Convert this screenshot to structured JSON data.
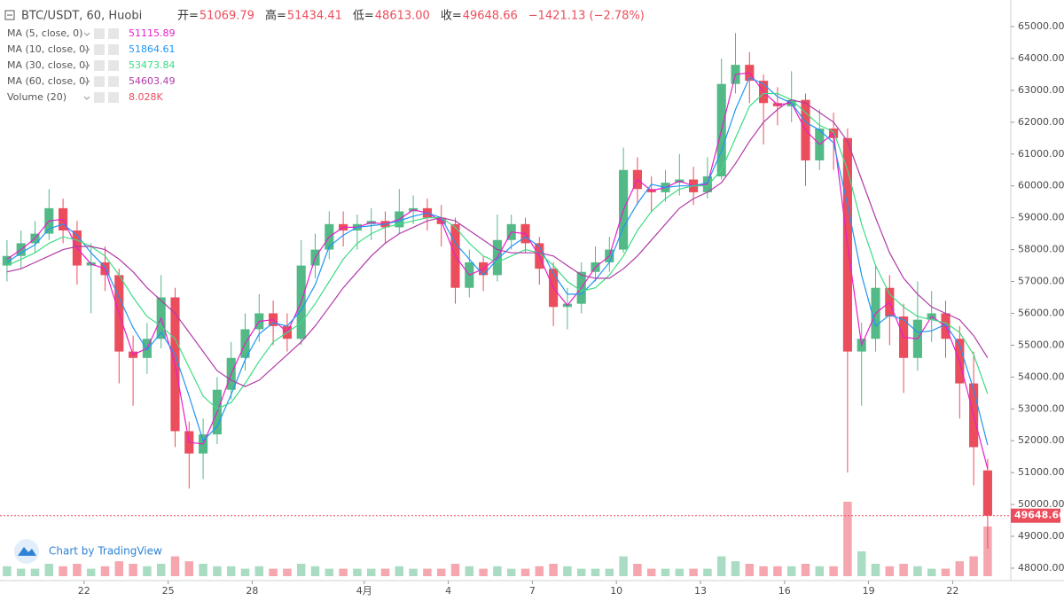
{
  "chart_data": {
    "type": "candlestick",
    "title": "BTC/USDT, 60, Huobi",
    "ohlc_legend": [
      {
        "label": "开=",
        "value": "51069.79"
      },
      {
        "label": "高=",
        "value": "51434.41"
      },
      {
        "label": "低=",
        "value": "48613.00"
      },
      {
        "label": "收=",
        "value": "49648.66"
      }
    ],
    "change": "−1421.13 (−2.78%)",
    "volume_legend": {
      "name": "Volume (20)",
      "value": "8.028K"
    },
    "watermark": "Chart by TradingView",
    "up_color": "#53b987",
    "down_color": "#eb4d5c",
    "volume_up_color": "#a9dcc3",
    "volume_down_color": "#f5a6ae",
    "categories": [
      null,
      null,
      null,
      null,
      null,
      null,
      "22",
      null,
      null,
      null,
      null,
      null,
      "25",
      null,
      null,
      null,
      null,
      null,
      "28",
      null,
      null,
      null,
      null,
      null,
      null,
      null,
      "4月",
      null,
      null,
      null,
      null,
      null,
      "4",
      null,
      null,
      null,
      null,
      null,
      "7",
      null,
      null,
      null,
      null,
      null,
      "10",
      null,
      null,
      null,
      null,
      null,
      "13",
      null,
      null,
      null,
      null,
      null,
      "16",
      null,
      null,
      null,
      null,
      null,
      "19",
      null,
      null,
      null,
      null,
      null,
      "22",
      null,
      null
    ],
    "open": [
      57500,
      57800,
      58200,
      58500,
      59300,
      58600,
      57500,
      57600,
      57200,
      54800,
      54600,
      55200,
      56500,
      52300,
      51600,
      52200,
      53600,
      54600,
      55500,
      56000,
      55600,
      55200,
      57500,
      58000,
      58800,
      58600,
      58800,
      58900,
      58700,
      59200,
      59300,
      59000,
      58800,
      56800,
      57600,
      57200,
      58300,
      58800,
      58200,
      57400,
      56200,
      56300,
      57300,
      57600,
      58000,
      60500,
      59900,
      59800,
      60100,
      60200,
      59800,
      60300,
      63200,
      63800,
      63300,
      62600,
      62500,
      62700,
      60800,
      61800,
      61500,
      54800,
      55200,
      56800,
      55900,
      54600,
      55800,
      56000,
      55200,
      53800,
      51069.79
    ],
    "high": [
      58300,
      58600,
      58900,
      59900,
      59600,
      58900,
      58200,
      58100,
      57400,
      55300,
      55700,
      57200,
      56800,
      52600,
      52700,
      54000,
      55100,
      56000,
      56600,
      56400,
      56000,
      58300,
      58500,
      59200,
      59200,
      59100,
      59300,
      59200,
      59900,
      59700,
      59600,
      59400,
      59000,
      58000,
      57800,
      59100,
      59100,
      59000,
      58400,
      57600,
      56800,
      57600,
      58100,
      58400,
      61200,
      60900,
      60300,
      60500,
      61000,
      60600,
      60900,
      64000,
      64800,
      64200,
      63500,
      63100,
      63600,
      62900,
      62400,
      62300,
      61800,
      55700,
      57500,
      57200,
      56300,
      57000,
      56700,
      56400,
      55600,
      54800,
      51434.41
    ],
    "low": [
      57000,
      57400,
      57900,
      58300,
      58200,
      56900,
      56000,
      56700,
      53800,
      53100,
      54100,
      54900,
      51800,
      50500,
      50800,
      51900,
      53300,
      54200,
      55100,
      55000,
      54800,
      55000,
      57100,
      57700,
      58100,
      58000,
      58300,
      58200,
      58500,
      58800,
      58600,
      58100,
      56300,
      56500,
      56700,
      57000,
      58000,
      57900,
      56900,
      55600,
      55500,
      56000,
      57000,
      57300,
      57900,
      59400,
      59200,
      59500,
      59700,
      59400,
      59600,
      60200,
      62900,
      62600,
      61300,
      61900,
      62000,
      60000,
      60500,
      60500,
      51000,
      53100,
      54800,
      55000,
      53500,
      54200,
      55100,
      54600,
      52700,
      50600,
      48613
    ],
    "close": [
      57800,
      58200,
      58500,
      59300,
      58600,
      57500,
      57600,
      57200,
      54800,
      54600,
      55200,
      56500,
      52300,
      51600,
      52200,
      53600,
      54600,
      55500,
      56000,
      55600,
      55200,
      57500,
      58000,
      58800,
      58600,
      58800,
      58900,
      58700,
      59200,
      59300,
      59000,
      58800,
      56800,
      57600,
      57200,
      58300,
      58800,
      58200,
      57400,
      56200,
      56300,
      57300,
      57600,
      58000,
      60500,
      59900,
      59800,
      60100,
      60200,
      59800,
      60300,
      63200,
      63800,
      63300,
      62600,
      62500,
      62700,
      60800,
      61800,
      61500,
      54800,
      55200,
      56800,
      55900,
      54600,
      55800,
      56000,
      55200,
      53800,
      51800,
      49648.66
    ],
    "volume": [
      4,
      3,
      3,
      5,
      4,
      5,
      3,
      4,
      6,
      5,
      4,
      5,
      8,
      6,
      5,
      4,
      4,
      3,
      4,
      3,
      3,
      5,
      4,
      3,
      3,
      3,
      3,
      3,
      4,
      3,
      3,
      3,
      5,
      4,
      3,
      4,
      3,
      3,
      4,
      5,
      4,
      3,
      3,
      3,
      8,
      5,
      3,
      3,
      3,
      3,
      3,
      8,
      6,
      5,
      4,
      4,
      4,
      5,
      4,
      4,
      30,
      10,
      5,
      4,
      5,
      4,
      3,
      3,
      6,
      8,
      20
    ],
    "series": [
      {
        "name": "MA (5, close, 0)",
        "color": "#e91ec8",
        "values": [
          57700,
          58000,
          58350,
          58900,
          58950,
          58050,
          57550,
          57400,
          56000,
          54700,
          54900,
          55850,
          54400,
          51950,
          51900,
          52900,
          54100,
          55050,
          55750,
          55800,
          55400,
          56350,
          57750,
          58400,
          58700,
          58700,
          58850,
          58800,
          58950,
          59250,
          59150,
          58900,
          57800,
          57200,
          57400,
          57750,
          58550,
          58500,
          57800,
          56800,
          56250,
          56800,
          57450,
          57800,
          59250,
          60200,
          59850,
          59950,
          60150,
          60000,
          60050,
          61750,
          63500,
          63550,
          62950,
          62550,
          62600,
          61750,
          61300,
          61650,
          58150,
          55000,
          56000,
          56350,
          55250,
          55200,
          55900,
          55600,
          54500,
          52800,
          51115.89
        ]
      },
      {
        "name": "MA (10, close, 0)",
        "color": "#2196f3",
        "values": [
          57600,
          57900,
          58150,
          58650,
          58800,
          58450,
          57900,
          57450,
          56500,
          55550,
          54850,
          55400,
          54700,
          53400,
          52000,
          52450,
          53450,
          54550,
          55350,
          55700,
          55600,
          56100,
          56900,
          58100,
          58450,
          58700,
          58750,
          58800,
          58900,
          59050,
          59150,
          59000,
          58200,
          57700,
          57200,
          57700,
          58100,
          58400,
          58100,
          57250,
          56600,
          56600,
          57050,
          57600,
          58700,
          59450,
          60050,
          59950,
          60000,
          60000,
          60100,
          61100,
          62400,
          63400,
          63200,
          62800,
          62600,
          62000,
          61750,
          61350,
          59400,
          57200,
          55600,
          55950,
          55800,
          55400,
          55450,
          55650,
          55000,
          53600,
          51864.61
        ]
      },
      {
        "name": "MA (30, close, 0)",
        "color": "#3ddc84",
        "values": [
          57500,
          57700,
          57900,
          58200,
          58400,
          58300,
          58100,
          57800,
          57200,
          56500,
          55900,
          55600,
          55200,
          54300,
          53400,
          53000,
          53200,
          53800,
          54500,
          55100,
          55400,
          55700,
          56300,
          57000,
          57700,
          58200,
          58500,
          58700,
          58800,
          58900,
          59000,
          59000,
          58700,
          58200,
          57800,
          57600,
          57800,
          58000,
          57900,
          57500,
          57000,
          56700,
          56800,
          57200,
          57800,
          58600,
          59200,
          59600,
          59900,
          60000,
          60000,
          60500,
          61500,
          62500,
          62900,
          62900,
          62700,
          62300,
          61900,
          61700,
          60500,
          58800,
          57500,
          56600,
          56200,
          55900,
          55800,
          55700,
          55400,
          54700,
          53473.84
        ]
      },
      {
        "name": "MA (60, close, 0)",
        "color": "#b03aa8",
        "values": [
          57300,
          57400,
          57600,
          57800,
          58000,
          58100,
          58100,
          58000,
          57700,
          57300,
          56800,
          56400,
          56000,
          55400,
          54800,
          54200,
          53900,
          53700,
          53900,
          54300,
          54700,
          55100,
          55600,
          56200,
          56800,
          57300,
          57800,
          58200,
          58500,
          58700,
          58900,
          59000,
          58900,
          58600,
          58300,
          58000,
          57900,
          57900,
          57900,
          57800,
          57500,
          57200,
          57100,
          57100,
          57400,
          57800,
          58300,
          58800,
          59300,
          59600,
          59800,
          60100,
          60700,
          61400,
          62000,
          62400,
          62700,
          62600,
          62300,
          62000,
          61400,
          60200,
          59000,
          57900,
          57100,
          56600,
          56200,
          56000,
          55800,
          55300,
          54603.49
        ]
      }
    ],
    "ylim": [
      47610,
      65835
    ],
    "yticks": [
      {
        "value": 48000,
        "label": "48000.00"
      },
      {
        "value": 49000,
        "label": "49000.00"
      },
      {
        "value": 50000,
        "label": "50000.00"
      },
      {
        "value": 51000,
        "label": "51000.00"
      },
      {
        "value": 52000,
        "label": "52000.00"
      },
      {
        "value": 53000,
        "label": "53000.00"
      },
      {
        "value": 54000,
        "label": "54000.00"
      },
      {
        "value": 55000,
        "label": "55000.00"
      },
      {
        "value": 56000,
        "label": "56000.00"
      },
      {
        "value": 57000,
        "label": "57000.00"
      },
      {
        "value": 58000,
        "label": "58000.00"
      },
      {
        "value": 59000,
        "label": "59000.00"
      },
      {
        "value": 60000,
        "label": "60000.00"
      },
      {
        "value": 61000,
        "label": "61000.00"
      },
      {
        "value": 62000,
        "label": "62000.00"
      },
      {
        "value": 63000,
        "label": "63000.00"
      },
      {
        "value": 64000,
        "label": "64000.00"
      },
      {
        "value": 65000,
        "label": "65000.00"
      }
    ],
    "grid": false
  }
}
